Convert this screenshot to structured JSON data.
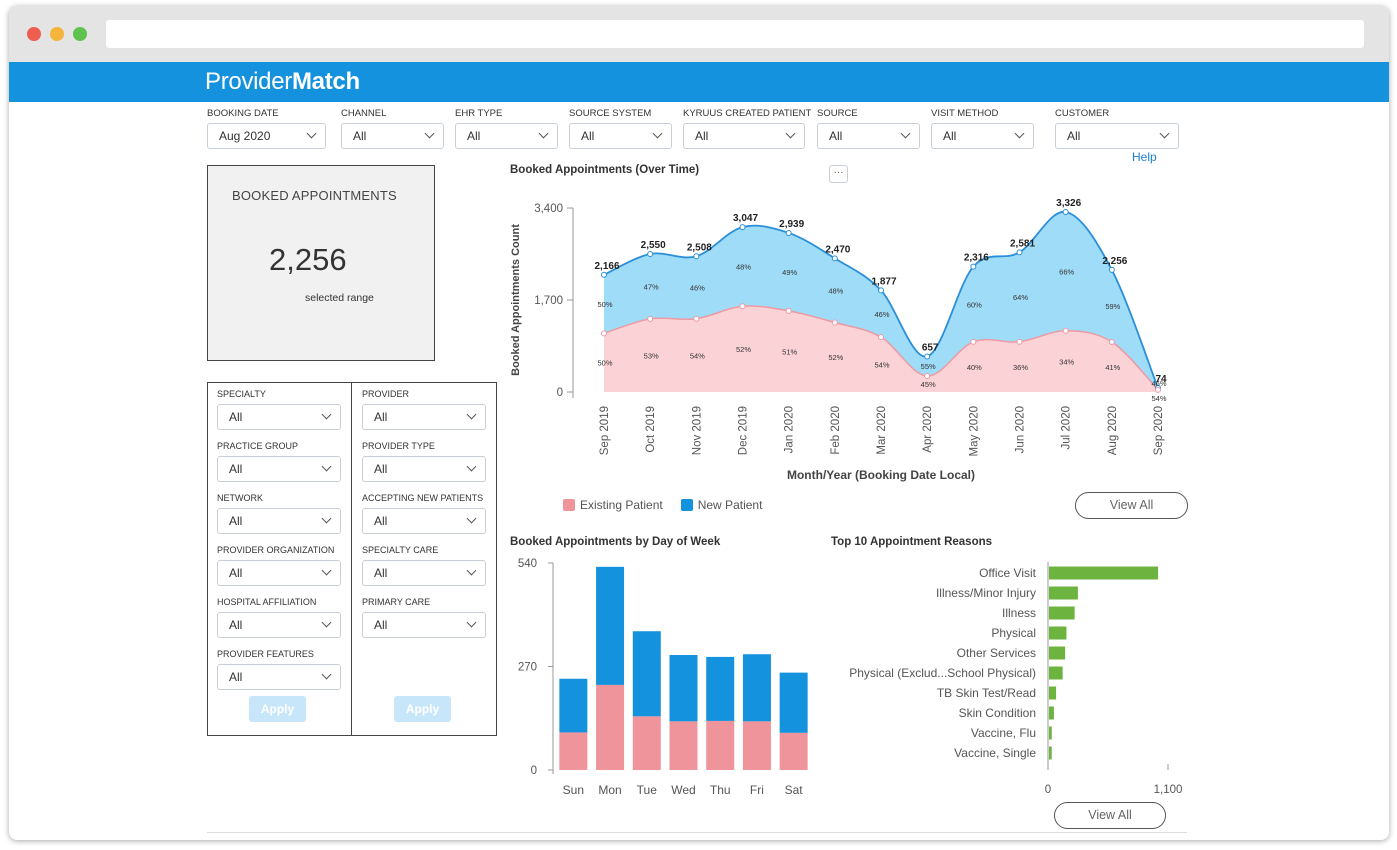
{
  "app": {
    "logo_light": "Provider",
    "logo_bold": "Match"
  },
  "top_filters": [
    {
      "label": "BOOKING DATE",
      "value": "Aug 2020"
    },
    {
      "label": "CHANNEL",
      "value": "All"
    },
    {
      "label": "EHR TYPE",
      "value": "All"
    },
    {
      "label": "SOURCE SYSTEM",
      "value": "All"
    },
    {
      "label": "KYRUUS CREATED PATIENT",
      "value": "All"
    },
    {
      "label": "SOURCE",
      "value": "All"
    },
    {
      "label": "VISIT METHOD",
      "value": "All"
    },
    {
      "label": "CUSTOMER",
      "value": "All"
    }
  ],
  "help_link": "Help",
  "kpi": {
    "title": "BOOKED APPOINTMENTS",
    "value": "2,256",
    "subtitle": "selected range"
  },
  "side_filters": {
    "left": [
      {
        "label": "SPECIALTY",
        "value": "All"
      },
      {
        "label": "PRACTICE GROUP",
        "value": "All"
      },
      {
        "label": "NETWORK",
        "value": "All"
      },
      {
        "label": "PROVIDER ORGANIZATION",
        "value": "All"
      },
      {
        "label": "HOSPITAL AFFILIATION",
        "value": "All"
      },
      {
        "label": "PROVIDER FEATURES",
        "value": "All"
      }
    ],
    "right": [
      {
        "label": "PROVIDER",
        "value": "All"
      },
      {
        "label": "PROVIDER TYPE",
        "value": "All"
      },
      {
        "label": "ACCEPTING NEW PATIENTS",
        "value": "All"
      },
      {
        "label": "SPECIALTY CARE",
        "value": "All"
      },
      {
        "label": "PRIMARY CARE",
        "value": "All"
      }
    ],
    "apply_label": "Apply"
  },
  "more_button": "···",
  "view_all_label": "View All",
  "colors": {
    "existing": "#f0949c",
    "new": "#1592de",
    "reason": "#6cb33f",
    "area_new": "#9fdcf7",
    "area_existing": "#fbd3d7"
  },
  "chart_data": [
    {
      "type": "area",
      "title": "Booked Appointments (Over Time)",
      "xlabel": "Month/Year (Booking Date Local)",
      "ylabel": "Booked Appointments Count",
      "ylim": [
        0,
        3400
      ],
      "yticks": [
        "0",
        "1,700",
        "3,400"
      ],
      "categories": [
        "Sep 2019",
        "Oct 2019",
        "Nov 2019",
        "Dec 2019",
        "Jan 2020",
        "Feb 2020",
        "Mar 2020",
        "Apr 2020",
        "May 2020",
        "Jun 2020",
        "Jul 2020",
        "Aug 2020",
        "Sep 2020"
      ],
      "totals": [
        2166,
        2550,
        2508,
        3047,
        2939,
        2470,
        1877,
        657,
        2316,
        2581,
        3326,
        2256,
        74
      ],
      "total_labels": [
        "2,166",
        "2,550",
        "2,508",
        "3,047",
        "2,939",
        "2,470",
        "1,877",
        "657",
        "2,316",
        "2,581",
        "3,326",
        "2,256",
        "74"
      ],
      "series": [
        {
          "name": "Existing Patient",
          "percent": [
            "50%",
            "53%",
            "54%",
            "52%",
            "51%",
            "52%",
            "54%",
            "45%",
            "40%",
            "36%",
            "34%",
            "41%",
            "54%"
          ],
          "share": [
            0.5,
            0.53,
            0.54,
            0.52,
            0.51,
            0.52,
            0.54,
            0.45,
            0.4,
            0.36,
            0.34,
            0.41,
            0.54
          ]
        },
        {
          "name": "New Patient",
          "percent": [
            "50%",
            "47%",
            "46%",
            "48%",
            "49%",
            "48%",
            "46%",
            "55%",
            "60%",
            "64%",
            "66%",
            "59%",
            "46%"
          ]
        }
      ],
      "legend": "bottom-left"
    },
    {
      "type": "bar",
      "title": "Booked Appointments by Day of Week",
      "categories": [
        "Sun",
        "Mon",
        "Tue",
        "Wed",
        "Thu",
        "Fri",
        "Sat"
      ],
      "ylim": [
        0,
        540
      ],
      "yticks": [
        "0",
        "270",
        "540"
      ],
      "series": [
        {
          "name": "Existing Patient",
          "values": [
            98,
            222,
            140,
            127,
            128,
            127,
            97
          ]
        },
        {
          "name": "New Patient",
          "values": [
            140,
            308,
            222,
            173,
            167,
            175,
            157
          ]
        }
      ]
    },
    {
      "type": "bar",
      "title": "Top 10 Appointment Reasons",
      "orientation": "horizontal",
      "categories": [
        "Office Visit",
        "Illness/Minor Injury",
        "Illness",
        "Physical",
        "Other Services",
        "Physical (Exclud...School Physical)",
        "TB Skin Test/Read",
        "Skin Condition",
        "Vaccine, Flu",
        "Vaccine, Single"
      ],
      "values": [
        1000,
        265,
        235,
        160,
        148,
        125,
        65,
        45,
        25,
        25
      ],
      "xlim": [
        0,
        1100
      ],
      "xticks": [
        "0",
        "1,100"
      ]
    }
  ]
}
